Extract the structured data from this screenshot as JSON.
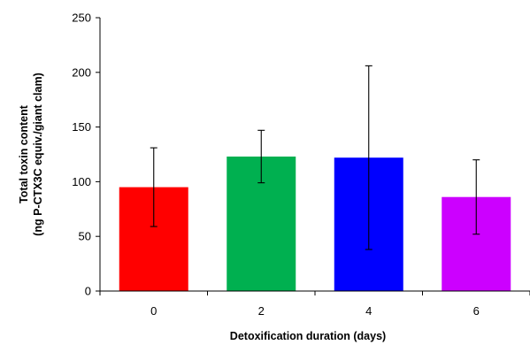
{
  "chart_data": {
    "type": "bar",
    "categories": [
      "0",
      "2",
      "4",
      "6"
    ],
    "values": [
      95,
      123,
      122,
      86
    ],
    "error_low": [
      59,
      99,
      38,
      52
    ],
    "error_high": [
      131,
      147,
      206,
      120
    ],
    "colors": [
      "#ff0000",
      "#00b050",
      "#0000ff",
      "#cc00ff"
    ],
    "ylim": [
      0,
      250
    ],
    "yticks": [
      0,
      50,
      100,
      150,
      200,
      250
    ],
    "xlabel": "Detoxification duration (days)",
    "ylabel_line1": "Total toxin content",
    "ylabel_line2": "(ng P-CTX3C equiv./giant clam)",
    "grid": false,
    "legend": false
  }
}
